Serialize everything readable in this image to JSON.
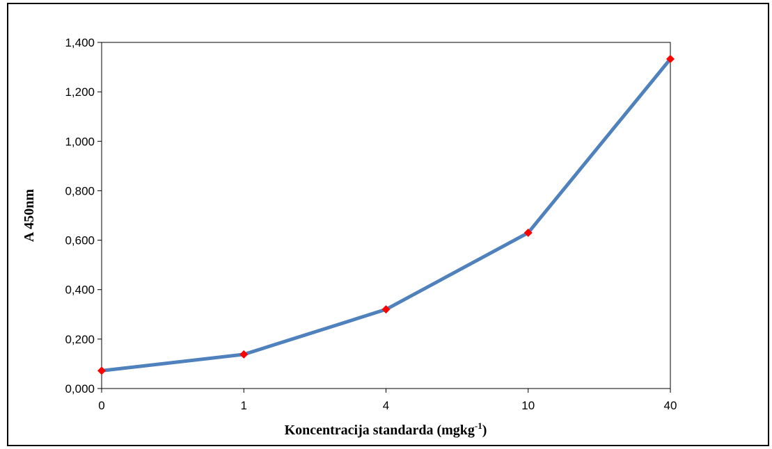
{
  "chart_data": {
    "type": "line",
    "title": "",
    "xlabel": "Koncentracija standarda (mgkg",
    "xlabel_superscript": "-1",
    "xlabel_suffix": ")",
    "ylabel": "A 450nm",
    "categories": [
      "0",
      "1",
      "4",
      "10",
      "40"
    ],
    "series": [
      {
        "values": [
          0.072,
          0.138,
          0.32,
          0.63,
          1.333
        ],
        "line_color": "#4F81BD",
        "marker_color": "#FF0000",
        "marker": "diamond"
      }
    ],
    "ylim": [
      0,
      1.4
    ],
    "yticks": [
      "0,000",
      "0,200",
      "0,400",
      "0,600",
      "0,800",
      "1,000",
      "1,200",
      "1,400"
    ],
    "grid": false,
    "legend": "none"
  }
}
